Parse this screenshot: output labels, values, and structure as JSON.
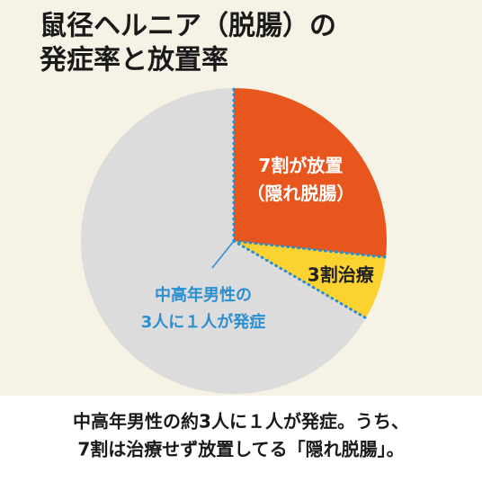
{
  "chart_data": {
    "type": "pie",
    "title": [
      "鼠径ヘルニア（脱腸）の",
      "発症率と放置率"
    ],
    "categories": [
      [
        "7割が放置",
        "（隠れ脱腸）"
      ],
      [
        "3割治療"
      ],
      null
    ],
    "values": [
      26.7,
      6.7,
      66.6
    ],
    "colors": [
      "#e8561d",
      "#fbd22f",
      "#dcdcdc"
    ],
    "label_colors": [
      "#ffffff",
      "#222222",
      null
    ],
    "annotation": [
      "中高年男性の",
      "3人に１人が発症"
    ],
    "annotation_color": "#2a8fd0",
    "caption": [
      "中高年男性の約3人に１人が発症。うち、",
      "7割は治療せず放置してる「隠れ脱腸」。"
    ]
  }
}
